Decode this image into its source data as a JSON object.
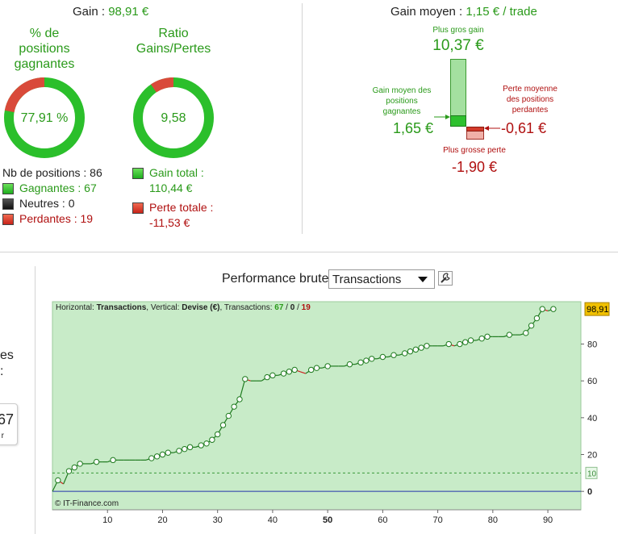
{
  "gain": {
    "label": "Gain :",
    "value": "98,91 €"
  },
  "gain_moyen": {
    "label": "Gain moyen :",
    "value": "1,15 € / trade"
  },
  "donut1": {
    "title_l1": "% de",
    "title_l2": "positions",
    "title_l3": "gagnantes",
    "value": "77,91 %",
    "fraction": 0.7791
  },
  "donut2": {
    "title_l1": "Ratio",
    "title_l2": "Gains/Pertes",
    "value": "9,58",
    "fraction": 0.9055
  },
  "positions": {
    "total_label": "Nb de positions : 86",
    "gagnantes_label": "Gagnantes :",
    "gagnantes_value": "67",
    "neutres_label": "Neutres : 0",
    "perdantes_label": "Perdantes :",
    "perdantes_value": "19"
  },
  "totals": {
    "gain_label": "Gain total :",
    "gain_value": "110,44 €",
    "perte_label": "Perte totale :",
    "perte_value": "-11,53 €"
  },
  "stats": {
    "plus_gros_gain_label": "Plus gros gain",
    "plus_gros_gain_value": "10,37 €",
    "gain_moyen_l1": "Gain moyen des",
    "gain_moyen_l2": "positions",
    "gain_moyen_l3": "gagnantes",
    "gain_moyen_value": "1,65 €",
    "perte_moyenne_l1": "Perte moyenne",
    "perte_moyenne_l2": "des positions",
    "perte_moyenne_l3": "perdantes",
    "perte_moyenne_value": "-0,61 €",
    "plus_grosse_perte_label": "Plus grosse perte",
    "plus_grosse_perte_value": "-1,90 €"
  },
  "left_partial": {
    "text1": "es",
    "text2": ":",
    "box_value": "67",
    "box_sub": "r"
  },
  "perf": {
    "title": "Performance brute",
    "dropdown_value": "Transactions",
    "header_h_label": "Horizontal:",
    "header_h_value": "Transactions",
    "header_v_label": ", Vertical:",
    "header_v_value": "Devise (€)",
    "header_t_label": ", Transactions:",
    "header_t_win": "67",
    "header_t_sep1": " / ",
    "header_t_neu": "0",
    "header_t_sep2": " / ",
    "header_t_loss": "19",
    "copyright": "© IT-Finance.com",
    "last_value_tag": "98,91",
    "threshold_tag": "10"
  },
  "chart_data": {
    "type": "line",
    "xlabel": "",
    "ylabel": "",
    "xlim": [
      0,
      96
    ],
    "ylim": [
      -10,
      103
    ],
    "x_ticks": [
      "10",
      "20",
      "30",
      "40",
      "50",
      "60",
      "70",
      "80",
      "90"
    ],
    "y_ticks": [
      "0",
      "20",
      "40",
      "60",
      "80"
    ],
    "threshold": 10,
    "series": [
      {
        "values": [
          0,
          6,
          4,
          11,
          13,
          15,
          15,
          15,
          16,
          16,
          16,
          17,
          17,
          17,
          17,
          17,
          17,
          17,
          18,
          19,
          20,
          21,
          21,
          22,
          23,
          24,
          24,
          25,
          26,
          28,
          31,
          36,
          41,
          46,
          50,
          61,
          60,
          60,
          60,
          62,
          63,
          63,
          64,
          65,
          66,
          65,
          64,
          66,
          67,
          67,
          68,
          68,
          68,
          68,
          69,
          69,
          70,
          71,
          72,
          72,
          73,
          73,
          74,
          74,
          75,
          76,
          77,
          78,
          79,
          79,
          79,
          79,
          80,
          79,
          80,
          81,
          82,
          82,
          83,
          84,
          84,
          84,
          84,
          85,
          85,
          85,
          86,
          90,
          94,
          99,
          98,
          99
        ]
      }
    ]
  },
  "colors": {
    "green": "#2a9a1a",
    "red": "#b01010",
    "plot_bg": "#c8ebc8",
    "line": "#1e7a1e",
    "loss_line": "#cc2222",
    "zero_line": "#2233aa",
    "value_tag": "#f0c000"
  }
}
